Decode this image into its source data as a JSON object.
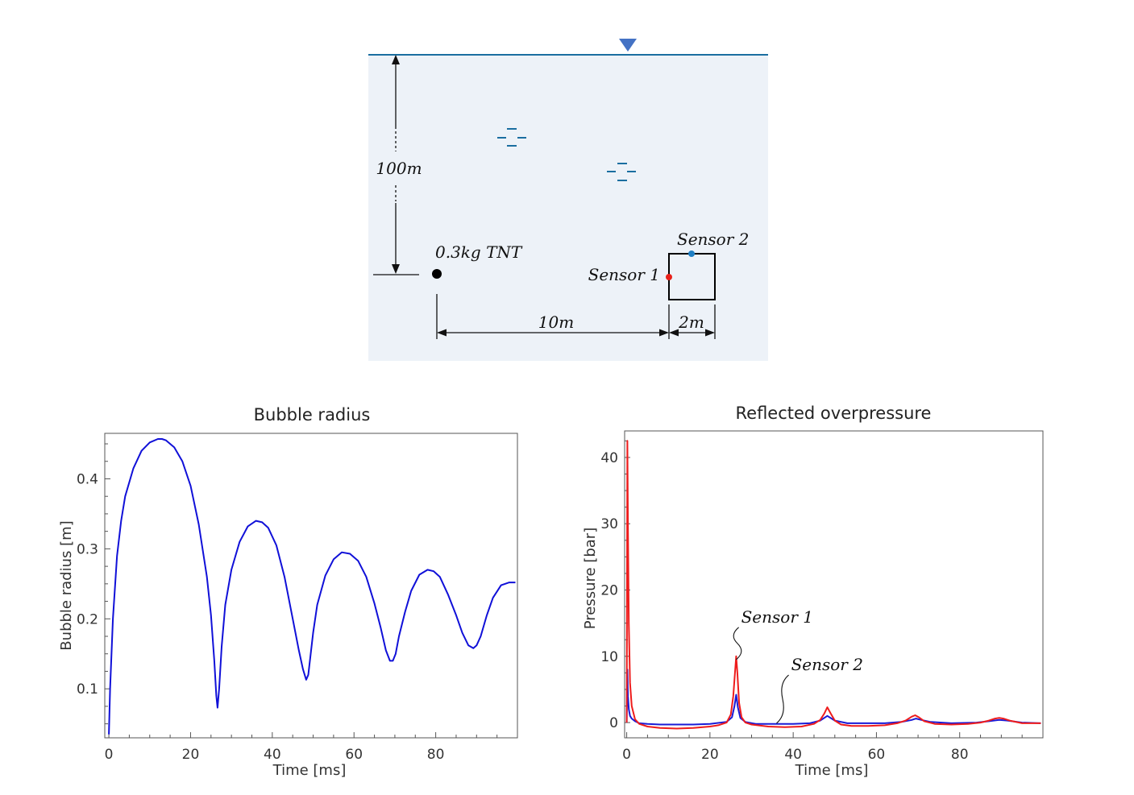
{
  "diagram": {
    "depth_label": "100m",
    "charge_label": "0.3kg TNT",
    "sensor1_label": "Sensor 1",
    "sensor2_label": "Sensor 2",
    "distance_label": "10m",
    "width_label": "2m",
    "colors": {
      "water": "#edf2f8",
      "surface": "#1a6ea0",
      "marker": "#4472c4",
      "sensor1": "#e8211a",
      "sensor2": "#1f7fc4"
    }
  },
  "chart_data": [
    {
      "type": "line",
      "title": "Bubble radius",
      "xlabel": "Time [ms]",
      "ylabel": "Bubble radius [m]",
      "xlim": [
        -1,
        100
      ],
      "ylim": [
        0.03,
        0.465
      ],
      "xticks": [
        0,
        20,
        40,
        60,
        80
      ],
      "yticks": [
        0.1,
        0.2,
        0.3,
        0.4
      ],
      "series": [
        {
          "color": "#1010d8",
          "x": [
            0,
            0.3,
            1,
            2,
            3,
            4,
            6,
            8,
            10,
            12,
            13,
            14,
            16,
            18,
            20,
            22,
            24,
            25,
            25.8,
            26.3,
            26.6,
            27,
            27.6,
            28.5,
            30,
            32,
            34,
            36,
            37.5,
            39,
            41,
            43,
            45,
            46.5,
            47.5,
            48.3,
            48.8,
            49.3,
            50,
            51,
            53,
            55,
            57,
            59,
            61,
            63,
            65,
            66.5,
            67.8,
            68.8,
            69.5,
            70.2,
            71,
            72.5,
            74,
            76,
            78,
            79.5,
            81,
            83,
            85,
            86.5,
            88,
            89.2,
            90,
            91,
            92.5,
            94,
            96,
            98,
            99.5
          ],
          "y": [
            0.035,
            0.1,
            0.2,
            0.29,
            0.34,
            0.375,
            0.415,
            0.44,
            0.452,
            0.457,
            0.457,
            0.455,
            0.445,
            0.425,
            0.39,
            0.335,
            0.26,
            0.205,
            0.14,
            0.09,
            0.073,
            0.1,
            0.16,
            0.22,
            0.27,
            0.31,
            0.332,
            0.34,
            0.338,
            0.33,
            0.305,
            0.26,
            0.2,
            0.155,
            0.128,
            0.113,
            0.12,
            0.145,
            0.18,
            0.22,
            0.262,
            0.285,
            0.295,
            0.293,
            0.283,
            0.26,
            0.222,
            0.188,
            0.155,
            0.14,
            0.14,
            0.15,
            0.175,
            0.21,
            0.24,
            0.263,
            0.27,
            0.268,
            0.26,
            0.235,
            0.205,
            0.18,
            0.162,
            0.158,
            0.162,
            0.175,
            0.205,
            0.23,
            0.248,
            0.252,
            0.252
          ]
        }
      ]
    },
    {
      "type": "line",
      "title": "Reflected overpressure",
      "xlabel": "Time [ms]",
      "ylabel": "Pressure [bar]",
      "xlim": [
        -0.5,
        100
      ],
      "ylim": [
        -2.3,
        44
      ],
      "xticks": [
        0,
        20,
        40,
        60,
        80
      ],
      "yticks": [
        0,
        10,
        20,
        30,
        40
      ],
      "annotations": [
        {
          "text": "Sensor 1",
          "x": 27.5,
          "y": 15.1,
          "target_x": 26.3,
          "target_y": 9.5
        },
        {
          "text": "Sensor 2",
          "x": 39.5,
          "y": 7.9,
          "target_x": 36,
          "target_y": -0.1
        }
      ],
      "series": [
        {
          "name": "Sensor 1",
          "color": "#ee1c1c",
          "x": [
            0,
            0.15,
            0.3,
            0.5,
            0.8,
            1.2,
            2,
            3,
            5,
            8,
            12,
            16,
            20,
            22,
            24,
            25,
            25.6,
            26,
            26.3,
            26.6,
            27,
            27.6,
            28.5,
            30,
            34,
            38,
            42,
            45,
            46.5,
            47.5,
            48.2,
            49,
            50,
            51.5,
            54,
            58,
            62,
            65,
            67,
            68.5,
            69.3,
            70.2,
            71.5,
            74,
            78,
            82,
            85,
            87,
            88.5,
            89.5,
            90.5,
            92,
            95,
            99.5
          ],
          "y": [
            0,
            42.5,
            30,
            15,
            6,
            2.5,
            0.5,
            -0.2,
            -0.6,
            -0.8,
            -0.9,
            -0.8,
            -0.6,
            -0.4,
            0,
            1.2,
            4,
            7.5,
            10,
            7.5,
            3,
            0.8,
            0,
            -0.3,
            -0.6,
            -0.7,
            -0.6,
            -0.2,
            0.4,
            1.4,
            2.3,
            1.4,
            0.3,
            -0.3,
            -0.5,
            -0.5,
            -0.4,
            -0.1,
            0.3,
            0.9,
            1.1,
            0.8,
            0.2,
            -0.2,
            -0.3,
            -0.2,
            0,
            0.3,
            0.6,
            0.7,
            0.6,
            0.3,
            -0.1,
            -0.1
          ]
        },
        {
          "name": "Sensor 2",
          "color": "#1a1ad6",
          "x": [
            0,
            0.15,
            0.3,
            0.5,
            0.8,
            1.2,
            2,
            3,
            5,
            8,
            12,
            16,
            20,
            24,
            25.3,
            25.9,
            26.3,
            26.7,
            27.3,
            28.5,
            31,
            35,
            40,
            44,
            46.5,
            48.2,
            50,
            53,
            58,
            62,
            66,
            68.5,
            69.5,
            70.8,
            73,
            78,
            84,
            87,
            89.5,
            91.5,
            95,
            99.5
          ],
          "y": [
            0,
            8,
            4,
            2,
            1,
            0.6,
            0.2,
            -0.1,
            -0.2,
            -0.3,
            -0.3,
            -0.3,
            -0.2,
            0.1,
            0.8,
            2.5,
            4.2,
            2.3,
            0.7,
            0.1,
            -0.2,
            -0.2,
            -0.2,
            -0.1,
            0.3,
            1,
            0.3,
            -0.1,
            -0.1,
            -0.1,
            0.1,
            0.4,
            0.6,
            0.4,
            0.1,
            -0.1,
            0,
            0.2,
            0.4,
            0.3,
            0,
            -0.1
          ]
        }
      ]
    }
  ]
}
